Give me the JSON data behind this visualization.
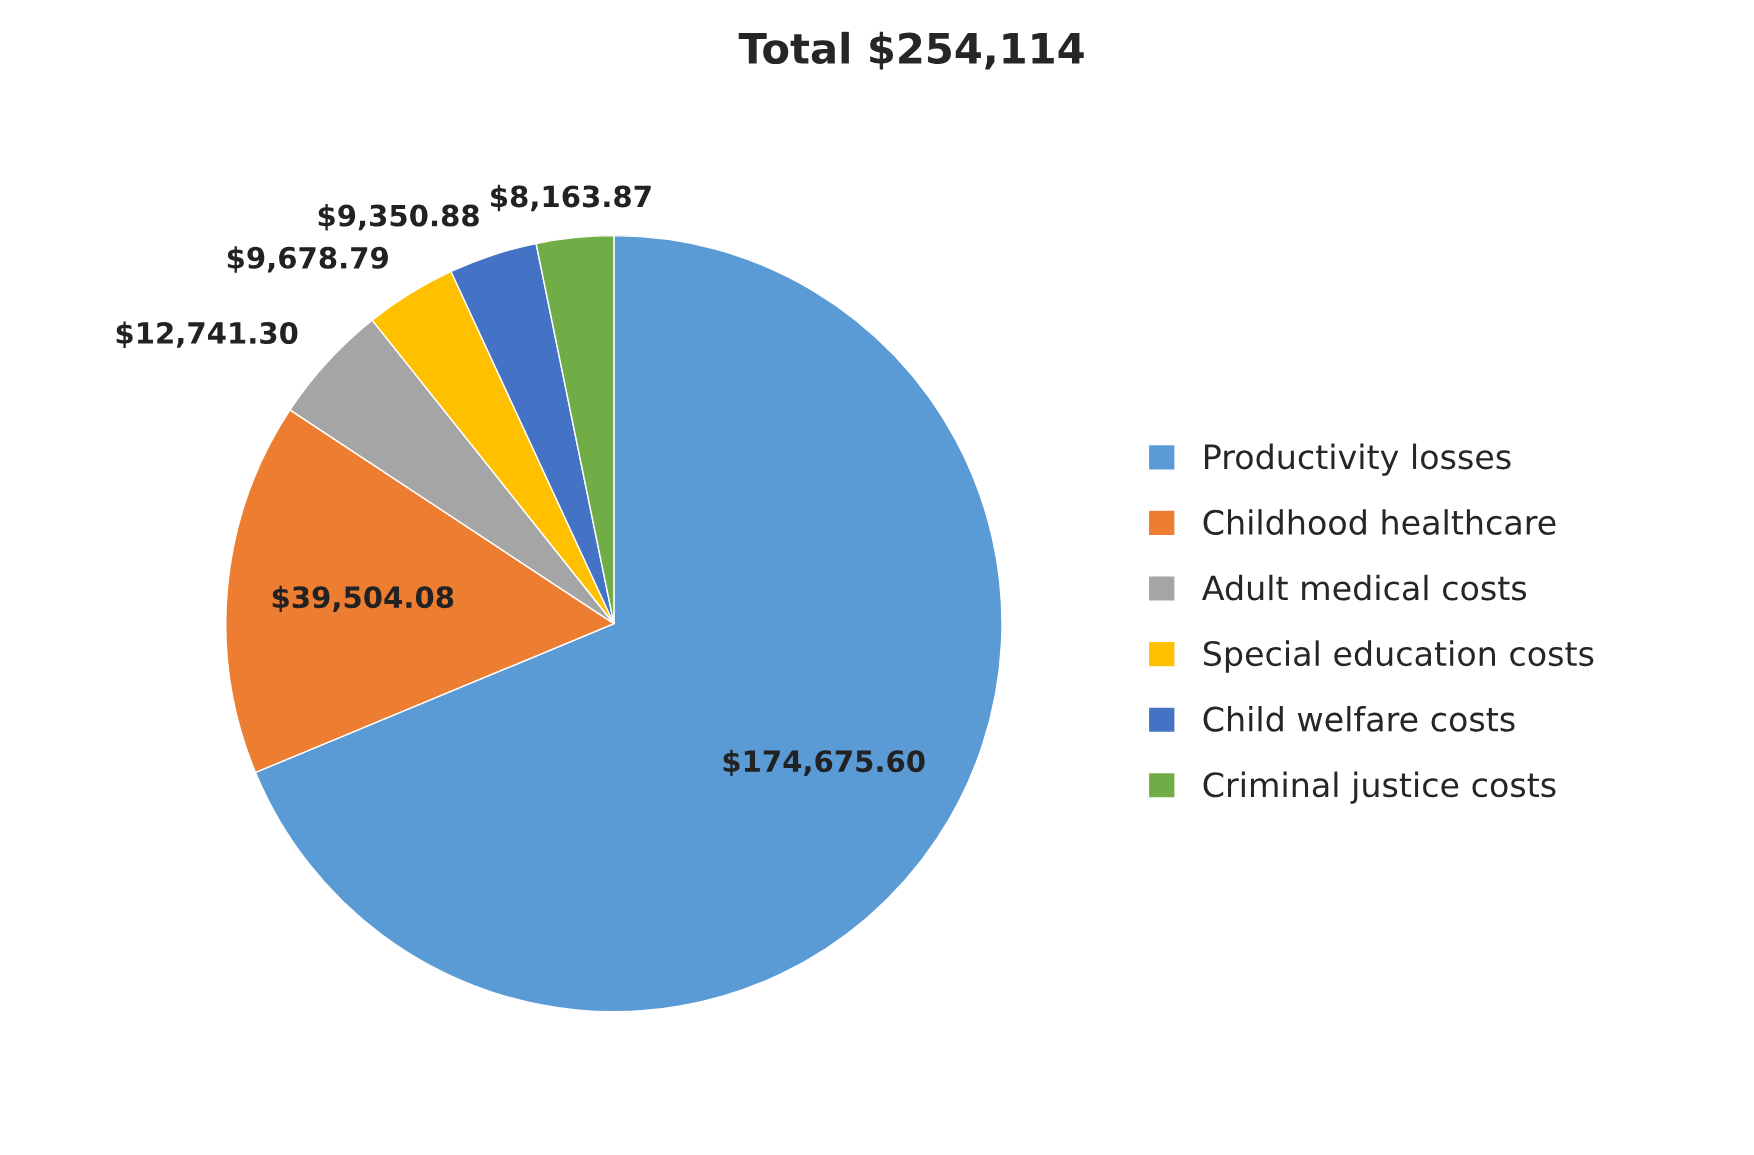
{
  "chart_data": {
    "type": "pie",
    "title": "Total $254,114",
    "categories": [
      "Productivity losses",
      "Childhood healthcare",
      "Adult medical costs",
      "Special education costs",
      "Child welfare costs",
      "Criminal justice costs"
    ],
    "values": [
      174675.6,
      39504.08,
      12741.3,
      9678.79,
      9350.88,
      8163.87
    ],
    "colors": [
      "#5b9bd5",
      "#ed7d31",
      "#a5a5a5",
      "#ffc000",
      "#4472c4",
      "#70ad47"
    ],
    "value_labels": [
      "$174,675.60",
      "$39,504.08",
      "$12,741.30",
      "$9,678.79",
      "$9,350.88",
      "$8,163.87"
    ],
    "legend": "right"
  }
}
